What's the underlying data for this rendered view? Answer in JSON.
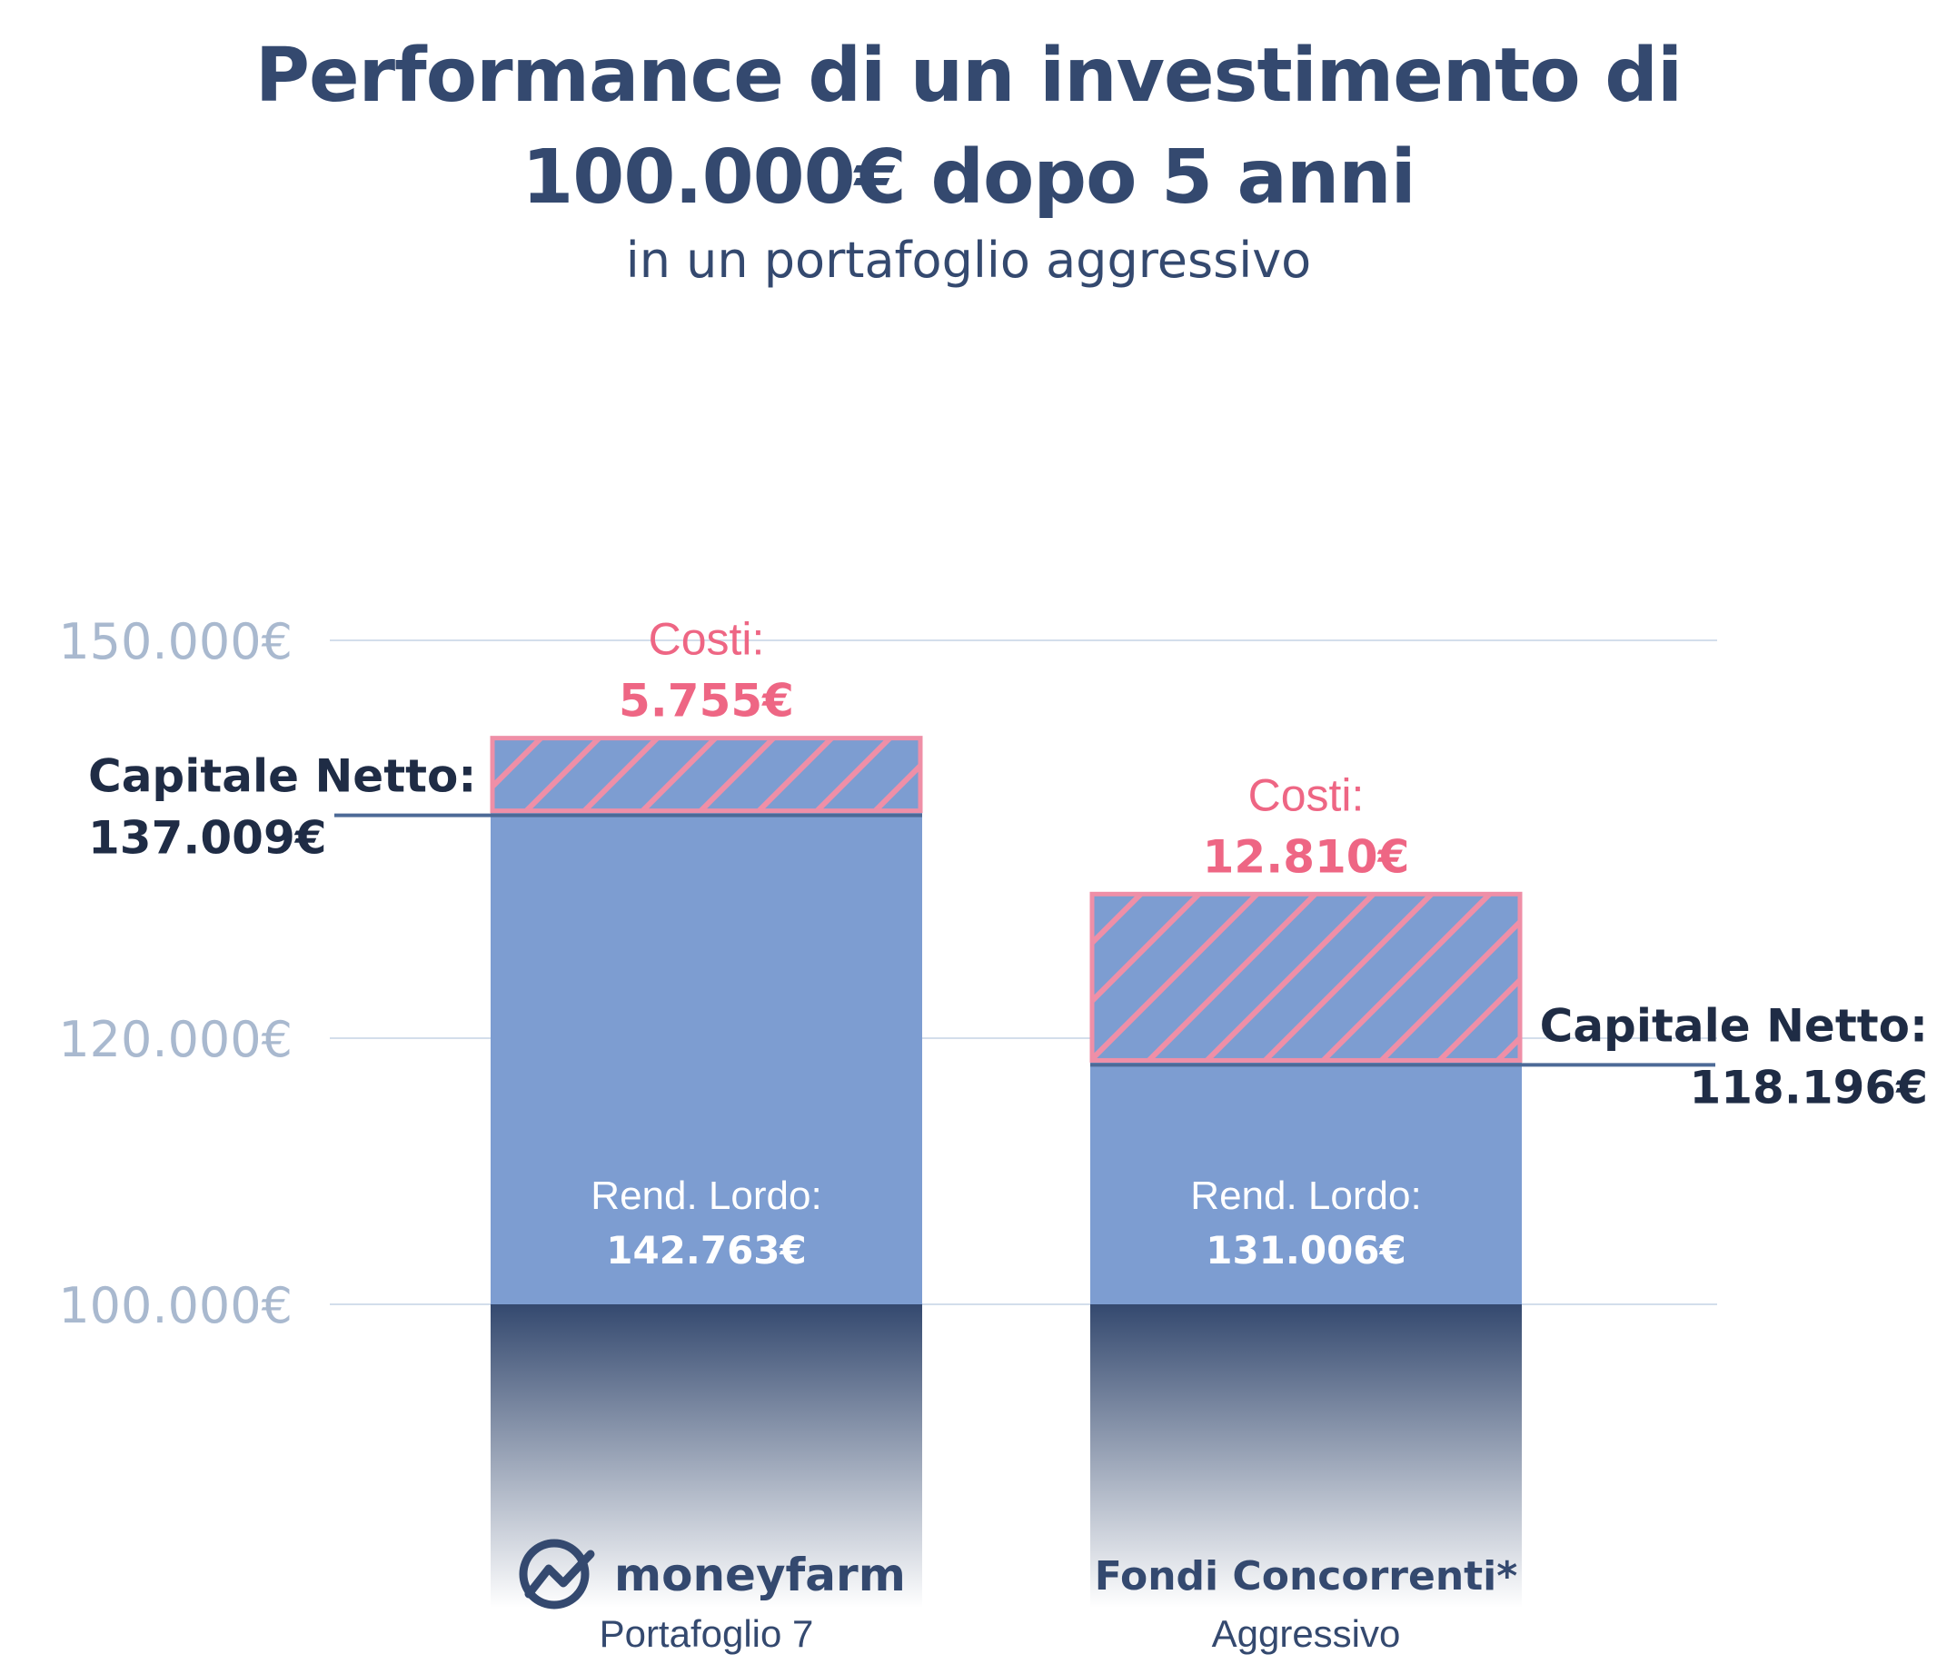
{
  "title": {
    "line1": "Performance di un investimento di",
    "line2": "100.000€ dopo 5 anni",
    "subtitle": "in un portafoglio aggressivo"
  },
  "colors": {
    "bar": "#7d9dd1",
    "bar_base_dark": "#34496f",
    "cost_pink": "#ee6684",
    "net_line": "#4d6a97",
    "grid": "#d3deeb",
    "tick": "#a9b9cf"
  },
  "chart_data": {
    "type": "bar",
    "stacked": true,
    "yticks": [
      100000,
      120000,
      150000
    ],
    "ytick_labels": [
      "100.000€",
      "120.000€",
      "150.000€"
    ],
    "ylim": [
      100000,
      150000
    ],
    "grid": true,
    "bars": [
      {
        "brand": "moneyfarm",
        "brand_icon": "moneyfarm-logo-icon",
        "category_sub": "Portafoglio 7",
        "net_capital": 137009,
        "net_label": "Capitale Netto:",
        "net_value_label": "137.009€",
        "costs": 5755,
        "costs_label": "Costi:",
        "costs_value_label": "5.755€",
        "gross_return": 142763,
        "gross_label": "Rend. Lordo:",
        "gross_value_label": "142.763€"
      },
      {
        "brand": "Fondi Concorrenti*",
        "category_sub": "Aggressivo",
        "net_capital": 118196,
        "net_label": "Capitale Netto:",
        "net_value_label": "118.196€",
        "costs": 12810,
        "costs_label": "Costi:",
        "costs_value_label": "12.810€",
        "gross_return": 131006,
        "gross_label": "Rend. Lordo:",
        "gross_value_label": "131.006€"
      }
    ]
  }
}
